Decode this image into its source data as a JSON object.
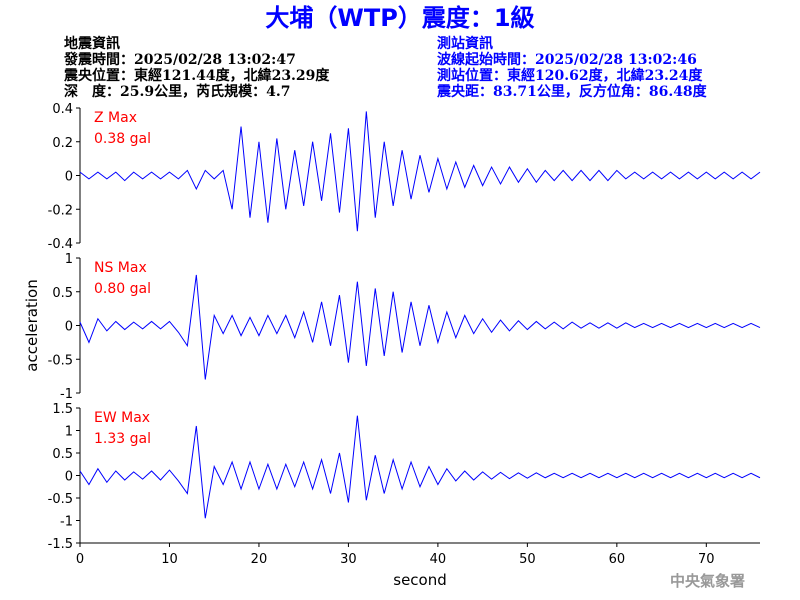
{
  "header": {
    "title": "大埔（WTP）震度：1級",
    "left": [
      "地震資訊",
      "發震時間：2025/02/28 13:02:47",
      "震央位置：東經121.44度，北緯23.29度",
      "深　度：25.9公里，芮氏規模：4.7"
    ],
    "right": [
      "測站資訊",
      "波線起始時間：2025/02/28 13:02:46",
      "測站位置：東經120.62度，北緯23.24度",
      "震央距：83.71公里，反方位角：86.48度"
    ]
  },
  "footer": "中央氣象署",
  "chart_data": [
    {
      "type": "line",
      "label": "Z Max",
      "max_label": "0.38 gal",
      "color": "#0000ff",
      "xlim": [
        0,
        76
      ],
      "ylim": [
        -0.4,
        0.4
      ],
      "yticks": [
        -0.4,
        -0.2,
        0,
        0.2,
        0.4
      ],
      "x": [
        0,
        1,
        2,
        3,
        4,
        5,
        6,
        7,
        8,
        9,
        10,
        11,
        12,
        13,
        14,
        15,
        16,
        17,
        18,
        19,
        20,
        21,
        22,
        23,
        24,
        25,
        26,
        27,
        28,
        29,
        30,
        31,
        32,
        33,
        34,
        35,
        36,
        37,
        38,
        39,
        40,
        41,
        42,
        43,
        44,
        45,
        46,
        47,
        48,
        49,
        50,
        51,
        52,
        53,
        54,
        55,
        56,
        57,
        58,
        59,
        60,
        61,
        62,
        63,
        64,
        65,
        66,
        67,
        68,
        69,
        70,
        71,
        72,
        73,
        74,
        75,
        76
      ],
      "values": [
        0.02,
        -0.02,
        0.02,
        -0.02,
        0.02,
        -0.03,
        0.02,
        -0.02,
        0.02,
        -0.02,
        0.02,
        -0.02,
        0.03,
        -0.08,
        0.03,
        -0.02,
        0.03,
        -0.2,
        0.29,
        -0.25,
        0.2,
        -0.28,
        0.22,
        -0.2,
        0.15,
        -0.18,
        0.2,
        -0.15,
        0.25,
        -0.22,
        0.28,
        -0.33,
        0.38,
        -0.25,
        0.2,
        -0.18,
        0.15,
        -0.14,
        0.12,
        -0.1,
        0.1,
        -0.08,
        0.08,
        -0.07,
        0.06,
        -0.06,
        0.05,
        -0.05,
        0.05,
        -0.04,
        0.04,
        -0.04,
        0.03,
        -0.03,
        0.03,
        -0.03,
        0.03,
        -0.03,
        0.03,
        -0.03,
        0.03,
        -0.02,
        0.02,
        -0.02,
        0.02,
        -0.02,
        0.02,
        -0.02,
        0.02,
        -0.02,
        0.02,
        -0.02,
        0.02,
        -0.02,
        0.02,
        -0.02,
        0.02
      ]
    },
    {
      "type": "line",
      "label": "NS Max",
      "max_label": "0.80 gal",
      "color": "#0000ff",
      "ylabel": "acceleration",
      "xlim": [
        0,
        76
      ],
      "ylim": [
        -1,
        1
      ],
      "yticks": [
        -1,
        -0.5,
        0,
        0.5,
        1
      ],
      "x": [
        0,
        1,
        2,
        3,
        4,
        5,
        6,
        7,
        8,
        9,
        10,
        11,
        12,
        13,
        14,
        15,
        16,
        17,
        18,
        19,
        20,
        21,
        22,
        23,
        24,
        25,
        26,
        27,
        28,
        29,
        30,
        31,
        32,
        33,
        34,
        35,
        36,
        37,
        38,
        39,
        40,
        41,
        42,
        43,
        44,
        45,
        46,
        47,
        48,
        49,
        50,
        51,
        52,
        53,
        54,
        55,
        56,
        57,
        58,
        59,
        60,
        61,
        62,
        63,
        64,
        65,
        66,
        67,
        68,
        69,
        70,
        71,
        72,
        73,
        74,
        75,
        76
      ],
      "values": [
        0.05,
        -0.25,
        0.1,
        -0.08,
        0.06,
        -0.06,
        0.05,
        -0.05,
        0.06,
        -0.05,
        0.06,
        -0.1,
        -0.3,
        0.75,
        -0.8,
        0.15,
        -0.12,
        0.15,
        -0.15,
        0.12,
        -0.15,
        0.15,
        -0.12,
        0.15,
        -0.18,
        0.2,
        -0.25,
        0.35,
        -0.3,
        0.45,
        -0.55,
        0.65,
        -0.6,
        0.55,
        -0.45,
        0.5,
        -0.4,
        0.35,
        -0.3,
        0.3,
        -0.25,
        0.2,
        -0.18,
        0.15,
        -0.12,
        0.1,
        -0.1,
        0.08,
        -0.08,
        0.07,
        -0.06,
        0.06,
        -0.05,
        0.05,
        -0.05,
        0.05,
        -0.04,
        0.04,
        -0.04,
        0.04,
        -0.04,
        0.04,
        -0.03,
        0.03,
        -0.03,
        0.03,
        -0.03,
        0.03,
        -0.03,
        0.03,
        -0.03,
        0.03,
        -0.03,
        0.03,
        -0.03,
        0.03,
        -0.03
      ]
    },
    {
      "type": "line",
      "label": "EW Max",
      "max_label": "1.33 gal",
      "color": "#0000ff",
      "xlabel": "second",
      "xlim": [
        0,
        76
      ],
      "xticks": [
        0,
        10,
        20,
        30,
        40,
        50,
        60,
        70
      ],
      "ylim": [
        -1.5,
        1.5
      ],
      "yticks": [
        -1.5,
        -1,
        -0.5,
        0,
        0.5,
        1,
        1.5
      ],
      "x": [
        0,
        1,
        2,
        3,
        4,
        5,
        6,
        7,
        8,
        9,
        10,
        11,
        12,
        13,
        14,
        15,
        16,
        17,
        18,
        19,
        20,
        21,
        22,
        23,
        24,
        25,
        26,
        27,
        28,
        29,
        30,
        31,
        32,
        33,
        34,
        35,
        36,
        37,
        38,
        39,
        40,
        41,
        42,
        43,
        44,
        45,
        46,
        47,
        48,
        49,
        50,
        51,
        52,
        53,
        54,
        55,
        56,
        57,
        58,
        59,
        60,
        61,
        62,
        63,
        64,
        65,
        66,
        67,
        68,
        69,
        70,
        71,
        72,
        73,
        74,
        75,
        76
      ],
      "values": [
        0.1,
        -0.2,
        0.15,
        -0.15,
        0.1,
        -0.1,
        0.08,
        -0.08,
        0.1,
        -0.1,
        0.12,
        -0.12,
        -0.4,
        1.1,
        -0.95,
        0.2,
        -0.2,
        0.3,
        -0.3,
        0.3,
        -0.3,
        0.25,
        -0.3,
        0.25,
        -0.25,
        0.3,
        -0.3,
        0.35,
        -0.4,
        0.5,
        -0.6,
        1.33,
        -0.55,
        0.45,
        -0.4,
        0.35,
        -0.3,
        0.3,
        -0.25,
        0.2,
        -0.2,
        0.15,
        -0.12,
        0.1,
        -0.1,
        0.08,
        -0.08,
        0.07,
        -0.07,
        0.06,
        -0.06,
        0.06,
        -0.05,
        0.05,
        -0.05,
        0.05,
        -0.05,
        0.05,
        -0.05,
        0.05,
        -0.05,
        0.05,
        -0.05,
        0.05,
        -0.05,
        0.05,
        -0.05,
        0.05,
        -0.05,
        0.05,
        -0.05,
        0.05,
        -0.05,
        0.05,
        -0.05,
        0.05,
        -0.05
      ]
    }
  ]
}
